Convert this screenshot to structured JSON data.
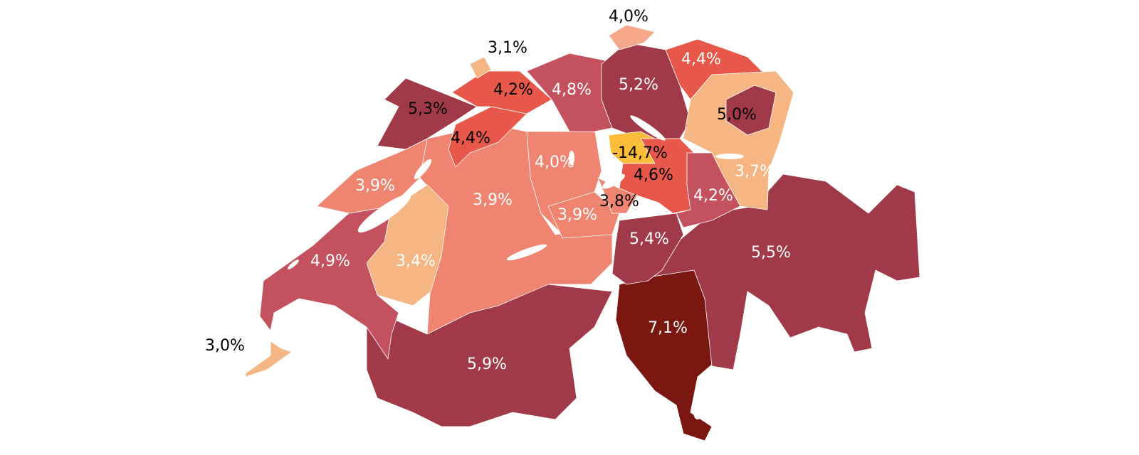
{
  "regions": [
    {
      "label": "5,9%",
      "color": "#a13a48",
      "text_color": "#ffffff"
    },
    {
      "label": "7,1%",
      "color": "#7a1710",
      "text_color": "#ffffff"
    },
    {
      "label": "5,5%",
      "color": "#a13a48",
      "text_color": "#ffffff"
    },
    {
      "label": "5,4%",
      "color": "#a13a48",
      "text_color": "#ffffff"
    },
    {
      "label": "3,9%",
      "color": "#ef8570",
      "text_color": "#ffffff"
    },
    {
      "label": "4,0%",
      "color": "#ef8570",
      "text_color": "#ffffff"
    },
    {
      "label": "3,9%",
      "color": "#ef8570",
      "text_color": "#ffffff"
    },
    {
      "label": "3,4%",
      "color": "#f5b683",
      "text_color": "#ffffff"
    },
    {
      "label": "4,9%",
      "color": "#c4515e",
      "text_color": "#ffffff"
    },
    {
      "label": "3,9%",
      "color": "#ef8570",
      "text_color": "#ffffff"
    },
    {
      "label": "5,3%",
      "color": "#a13a48",
      "text_color": "#000000"
    },
    {
      "label": "4,4%",
      "color": "#e8584a",
      "text_color": "#000000"
    },
    {
      "label": "4,2%",
      "color": "#e8584a",
      "text_color": "#000000"
    },
    {
      "label": "3,1%",
      "color": "#f5b683",
      "text_color": "#000000"
    },
    {
      "label": "4,8%",
      "color": "#c4515e",
      "text_color": "#ffffff"
    },
    {
      "label": "5,2%",
      "color": "#a13a48",
      "text_color": "#ffffff"
    },
    {
      "label": "4,0%",
      "color": "#f5a88a",
      "text_color": "#000000"
    },
    {
      "label": "4,4%",
      "color": "#e8584a",
      "text_color": "#ffffff"
    },
    {
      "label": "3,7%",
      "color": "#f5b683",
      "text_color": "#ffffff"
    },
    {
      "label": "5,0%",
      "color": "#a13a48",
      "text_color": "#000000"
    },
    {
      "label": "-14,7%",
      "color": "#fbbd3a",
      "text_color": "#000000"
    },
    {
      "label": "4,6%",
      "color": "#e8584a",
      "text_color": "#000000"
    },
    {
      "label": "4,2%",
      "color": "#c4515e",
      "text_color": "#ffffff"
    },
    {
      "label": "3,8%",
      "color": "#ef8570",
      "text_color": "#000000"
    },
    {
      "label": "3,0%",
      "color": "#f5b683",
      "text_color": "#000000"
    }
  ]
}
